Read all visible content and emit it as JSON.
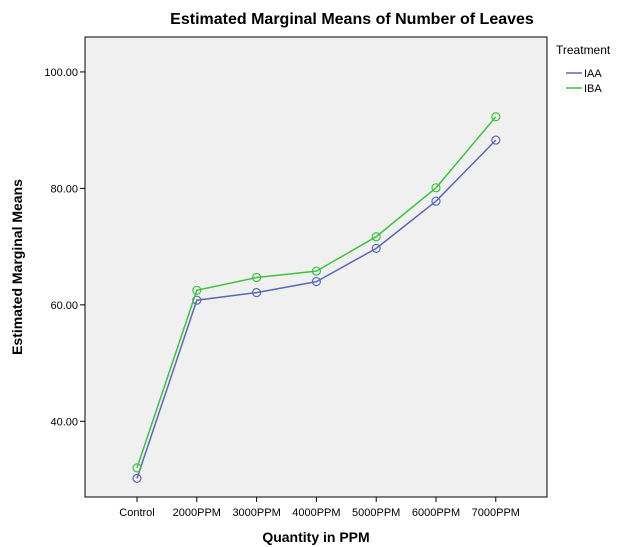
{
  "chart_data": {
    "type": "line",
    "title": "Estimated Marginal Means of Number of Leaves",
    "xlabel": "Quantity in PPM",
    "ylabel": "Estimated Marginal Means",
    "categories": [
      "Control",
      "2000PPM",
      "3000PPM",
      "4000PPM",
      "5000PPM",
      "6000PPM",
      "7000PPM"
    ],
    "y_ticks": [
      {
        "value": 40,
        "label": "40.00"
      },
      {
        "value": 60,
        "label": "60.00"
      },
      {
        "value": 80,
        "label": "80.00"
      },
      {
        "value": 100,
        "label": "100.00"
      }
    ],
    "ylim": [
      27,
      106
    ],
    "grid": false,
    "legend_title": "Treatment",
    "legend_placement": "top-right",
    "series": [
      {
        "name": "IAA",
        "color": "#5b69b5",
        "values": [
          30.2,
          60.8,
          62.1,
          64.0,
          69.7,
          77.8,
          88.3
        ]
      },
      {
        "name": "IBA",
        "color": "#3dc33d",
        "values": [
          32.0,
          62.5,
          64.7,
          65.8,
          71.7,
          80.1,
          92.3
        ]
      }
    ]
  }
}
